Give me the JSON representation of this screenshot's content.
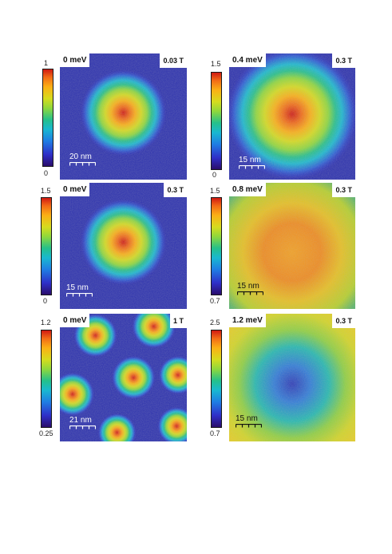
{
  "panels": [
    {
      "energy": "0 meV",
      "field": "0.03 T",
      "scale": "20 nm",
      "cb_max": "1",
      "cb_min": "0",
      "scale_color": "white",
      "pattern": "single-vortex"
    },
    {
      "energy": "0.4 meV",
      "field": "0.3 T",
      "scale": "15 nm",
      "cb_max": "1.5",
      "cb_min": "0",
      "scale_color": "white",
      "pattern": "broad-vortex"
    },
    {
      "energy": "0 meV",
      "field": "0.3 T",
      "scale": "15 nm",
      "cb_max": "1.5",
      "cb_min": "0",
      "scale_color": "white",
      "pattern": "single-vortex"
    },
    {
      "energy": "0.8 meV",
      "field": "0.3 T",
      "scale": "15 nm",
      "cb_max": "1.5",
      "cb_min": "0.7",
      "scale_color": "black",
      "pattern": "ring"
    },
    {
      "energy": "0 meV",
      "field": "1 T",
      "scale": "21 nm",
      "cb_max": "1.2",
      "cb_min": "0.25",
      "scale_color": "white",
      "pattern": "vortex-lattice"
    },
    {
      "energy": "1.2 meV",
      "field": "0.3 T",
      "scale": "15 nm",
      "cb_max": "2.5",
      "cb_min": "0.7",
      "scale_color": "black",
      "pattern": "depleted-core"
    }
  ]
}
